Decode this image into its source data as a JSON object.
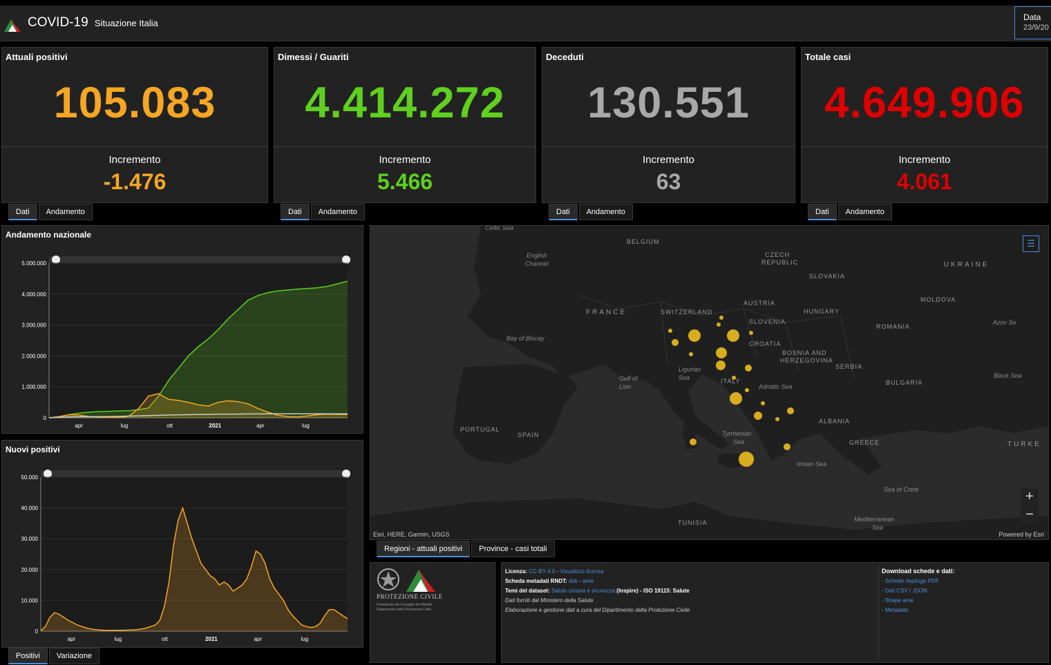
{
  "header": {
    "title": "COVID-19",
    "subtitle": "Situazione Italia",
    "date_label": "Data",
    "date_value": "23/9/20"
  },
  "colors": {
    "positivi": "#f5a623",
    "guariti": "#5fd01e",
    "deceduti": "#a8a8a8",
    "totale": "#e00000",
    "accent": "#4a90d9"
  },
  "cards": [
    {
      "title": "Attuali positivi",
      "value": "105.083",
      "increment_label": "Incremento",
      "increment": "-1.476",
      "color": "#f5a623",
      "tabs": [
        "Dati",
        "Andamento"
      ]
    },
    {
      "title": "Dimessi / Guariti",
      "value": "4.414.272",
      "increment_label": "Incremento",
      "increment": "5.466",
      "color": "#5fd01e",
      "tabs": [
        "Dati",
        "Andamento"
      ]
    },
    {
      "title": "Deceduti",
      "value": "130.551",
      "increment_label": "Incremento",
      "increment": "63",
      "color": "#a8a8a8",
      "tabs": [
        "Dati",
        "Andamento"
      ]
    },
    {
      "title": "Totale casi",
      "value": "4.649.906",
      "increment_label": "Incremento",
      "increment": "4.061",
      "color": "#e00000",
      "tabs": [
        "Dati",
        "Andamento"
      ]
    }
  ],
  "chart_data": [
    {
      "type": "area",
      "title": "Andamento nazionale",
      "x_tick_labels": [
        "apr",
        "lug",
        "ott",
        "2021",
        "apr",
        "lug"
      ],
      "y_tick_labels": [
        "0",
        "1.000.000",
        "2.000.000",
        "3.000.000",
        "4.000.000",
        "5.000.000"
      ],
      "ylim": [
        0,
        5000000
      ],
      "x": [
        0,
        2,
        4,
        6,
        8,
        10,
        12,
        14,
        16,
        17,
        18,
        20,
        22,
        24,
        26,
        28,
        30,
        32,
        34,
        36,
        38,
        40,
        42,
        44,
        46,
        48,
        50,
        52,
        54,
        56,
        58
      ],
      "series": [
        {
          "color": "#5fd01e",
          "fill": true,
          "values": [
            0,
            20000,
            100000,
            150000,
            180000,
            200000,
            210000,
            220000,
            230000,
            260000,
            320000,
            700000,
            1200000,
            1600000,
            2000000,
            2300000,
            2550000,
            2850000,
            3200000,
            3500000,
            3800000,
            3950000,
            4050000,
            4100000,
            4130000,
            4160000,
            4180000,
            4200000,
            4250000,
            4330000,
            4414272
          ]
        },
        {
          "color": "#f5a623",
          "fill": true,
          "values": [
            0,
            40000,
            100000,
            90000,
            40000,
            15000,
            12000,
            12000,
            50000,
            300000,
            700000,
            780000,
            600000,
            560000,
            500000,
            420000,
            380000,
            500000,
            550000,
            520000,
            450000,
            300000,
            180000,
            80000,
            40000,
            30000,
            60000,
            100000,
            120000,
            110000,
            105083
          ]
        },
        {
          "color": "#cccccc",
          "fill": false,
          "values": [
            0,
            15000,
            30000,
            34000,
            35000,
            36000,
            38000,
            45000,
            55000,
            60000,
            70000,
            80000,
            90000,
            95000,
            100000,
            105000,
            110000,
            115000,
            118000,
            121000,
            124000,
            126000,
            127000,
            127500,
            128000,
            128500,
            129000,
            129500,
            130000,
            130300,
            130551
          ]
        }
      ]
    },
    {
      "type": "area",
      "title": "Nuovi positivi",
      "x_tick_labels": [
        "apr",
        "lug",
        "ott",
        "2021",
        "apr",
        "lug"
      ],
      "y_tick_labels": [
        "0",
        "10.000",
        "20.000",
        "30.000",
        "40.000",
        "50.000"
      ],
      "ylim": [
        0,
        50000
      ],
      "tabs": [
        "Positivi",
        "Variazione"
      ],
      "series": [
        {
          "color": "#f5a623",
          "fill": true,
          "values": [
            100,
            1500,
            4500,
            6000,
            5500,
            4500,
            3500,
            2800,
            2000,
            1500,
            1000,
            700,
            500,
            350,
            250,
            250,
            300,
            300,
            300,
            350,
            400,
            500,
            700,
            1000,
            1500,
            2000,
            3500,
            8000,
            16000,
            28000,
            36000,
            40000,
            35000,
            30000,
            26000,
            22000,
            20000,
            18000,
            17000,
            15000,
            16000,
            15000,
            13000,
            14000,
            15000,
            17000,
            21000,
            26000,
            25000,
            22000,
            17000,
            14000,
            12000,
            10000,
            7000,
            5000,
            3500,
            2000,
            1500,
            1200,
            1500,
            2500,
            5000,
            7000,
            7000,
            6000,
            5000,
            4061
          ]
        }
      ]
    }
  ],
  "map": {
    "labels": [
      "BELGIUM",
      "CZECH",
      "REPUBLIC",
      "UKRAINE",
      "SLOVAKIA",
      "MOLDOVA",
      "FRANCE",
      "SWITZERLAND",
      "AUSTRIA",
      "HUNGARY",
      "SLOVENIA",
      "ROMANIA",
      "CROATIA",
      "BOSNIA AND",
      "HERZEGOVINA",
      "SERBIA",
      "ITALY",
      "BULGARIA",
      "PORTUGAL",
      "SPAIN",
      "ALBANIA",
      "GREECE",
      "TURKE",
      "TUNISIA"
    ],
    "seas": [
      "Celtic Sea",
      "English",
      "Channel",
      "Bay of Biscay",
      "Gulf of",
      "Lion",
      "Ligurian",
      "Sea",
      "Adriatic Sea",
      "Tyrrhenian",
      "Sea",
      "Ionian Sea",
      "Black Sea",
      "Azov Se",
      "Sea of Crete",
      "Mediterranean",
      "Sea"
    ],
    "attribution": "Esri, HERE, Garmin, USGS",
    "powered": "Powered by Esri",
    "zoom_in": "+",
    "zoom_out": "−",
    "list_icon": "list-icon",
    "bubble_color": "#e8b820",
    "tabs": [
      "Regioni - attuali positivi",
      "Province - casi totali"
    ]
  },
  "info": {
    "logo_title": "PROTEZIONE CIVILE",
    "logo_sub1": "Presidenza del Consiglio dei Ministri",
    "logo_sub2": "Dipartimento della Protezione Civile",
    "licenza_label": "Licenza:",
    "licenza_value": "CC-BY-4.0",
    "licenza_sep": " - ",
    "licenza_link": "Visualizza licenza",
    "metadati_label": "Scheda metadati RNDT:",
    "metadati_dati": "dati",
    "metadati_sep": " - ",
    "metadati_aree": "aree",
    "temi_label": "Temi del dataset:",
    "temi_link": "Salute umana e sicurezza",
    "temi_rest": "(Inspire) - ISO 19115: Salute",
    "line4": "Dati forniti dal Ministero della Salute",
    "line5": "Elaborazione e gestione dati a cura del Dipartimento della Protezione Civile",
    "download_title": "Download schede e dati:",
    "downloads": [
      "- Schede riepilogo PDF",
      "- Dati CSV / JSON",
      "- Shape aree",
      "- Metadata"
    ]
  }
}
